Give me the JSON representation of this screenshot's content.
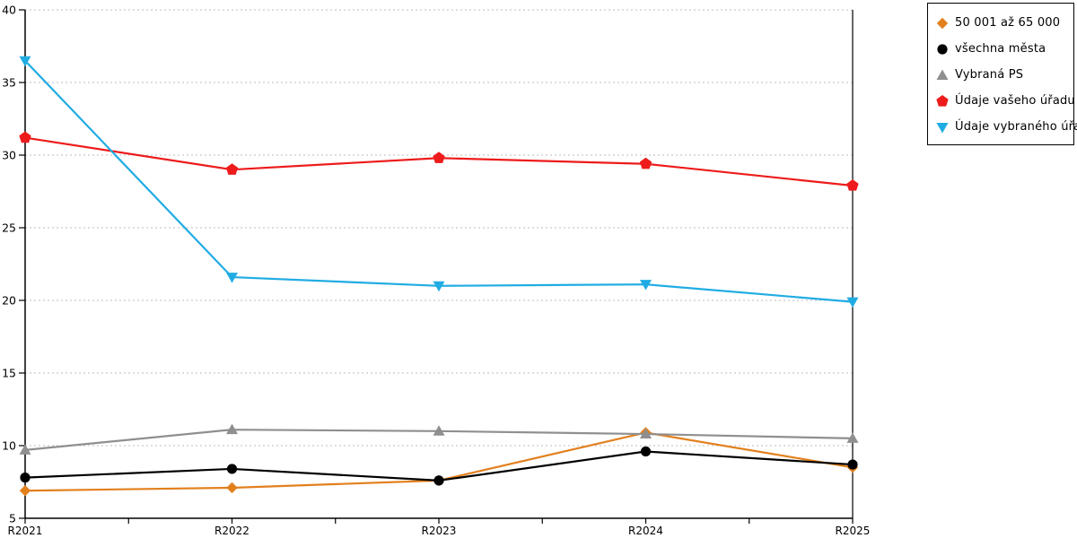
{
  "chart_data": {
    "type": "line",
    "title": "",
    "xlabel": "",
    "ylabel": "",
    "categories": [
      "R2021",
      "R2022",
      "R2023",
      "R2024",
      "R2025"
    ],
    "series": [
      {
        "name": "50 001 až 65 000",
        "marker": "diamond",
        "color": "#E2801E",
        "values": [
          6.9,
          7.1,
          7.6,
          10.9,
          8.5
        ]
      },
      {
        "name": "všechna města",
        "marker": "circle",
        "color": "#000000",
        "values": [
          7.8,
          8.4,
          7.6,
          9.6,
          8.7
        ]
      },
      {
        "name": "Vybraná PS",
        "marker": "triangle-up",
        "color": "#8F8F8F",
        "values": [
          9.7,
          11.1,
          11.0,
          10.8,
          10.5
        ]
      },
      {
        "name": "Údaje vašeho úřadu",
        "marker": "pentagon",
        "color": "#ED1B1B",
        "values": [
          31.2,
          29.0,
          29.8,
          29.4,
          27.9
        ]
      },
      {
        "name": "Údaje vybraného úřadu",
        "marker": "triangle-down",
        "color": "#20ACE3",
        "values": [
          36.5,
          21.6,
          21.0,
          21.1,
          19.9
        ]
      }
    ],
    "ylim": [
      5,
      40
    ],
    "ytick_step": 5,
    "grid": true,
    "gridline_color": "#BDBDBD",
    "axis_color": "#000000",
    "legend_position": "top-right"
  }
}
